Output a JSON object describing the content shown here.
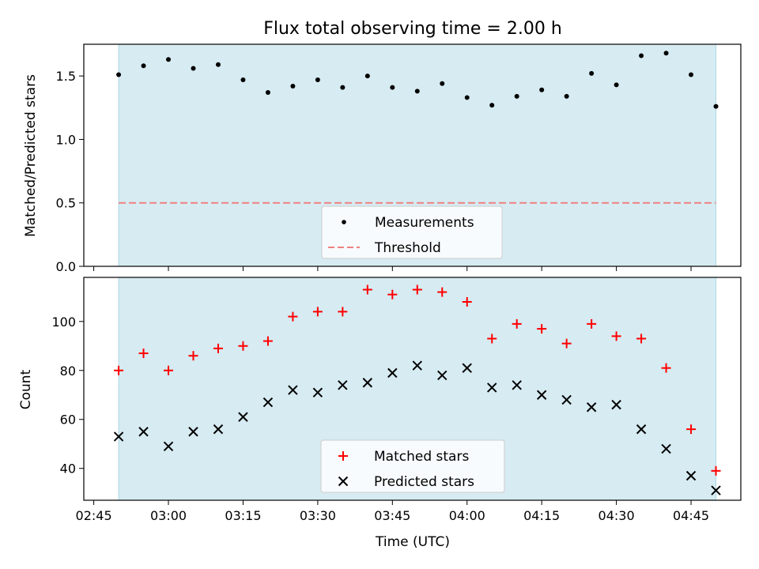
{
  "chart_data": [
    {
      "type": "scatter",
      "title": "Flux total observing time = 2.00 h",
      "ylabel": "Matched/Predicted stars",
      "xlabel": "",
      "ylim": [
        0,
        1.75
      ],
      "yticks": [
        "0.0",
        "0.5",
        "1.0",
        "1.5"
      ],
      "shaded_span": [
        "02:50",
        "04:50"
      ],
      "shade_color": "#add8e6",
      "legend_position": "lower center",
      "x": [
        "02:50",
        "02:55",
        "03:00",
        "03:05",
        "03:10",
        "03:15",
        "03:20",
        "03:25",
        "03:30",
        "03:35",
        "03:40",
        "03:45",
        "03:50",
        "03:55",
        "04:00",
        "04:05",
        "04:10",
        "04:15",
        "04:20",
        "04:25",
        "04:30",
        "04:35",
        "04:40",
        "04:45",
        "04:50"
      ],
      "series": [
        {
          "name": "Measurements",
          "marker": "dot",
          "color": "#000000",
          "values": [
            1.51,
            1.58,
            1.63,
            1.56,
            1.59,
            1.47,
            1.37,
            1.42,
            1.47,
            1.41,
            1.5,
            1.41,
            1.38,
            1.44,
            1.33,
            1.27,
            1.34,
            1.39,
            1.34,
            1.52,
            1.43,
            1.66,
            1.68,
            1.51,
            1.26
          ]
        },
        {
          "name": "Threshold",
          "marker": "dashed-line",
          "color": "#f08080",
          "values": [
            0.5
          ]
        }
      ]
    },
    {
      "type": "scatter",
      "title": "",
      "ylabel": "Count",
      "xlabel": "Time (UTC)",
      "ylim": [
        27,
        118
      ],
      "yticks": [
        "40",
        "60",
        "80",
        "100"
      ],
      "xticks": [
        "02:45",
        "03:00",
        "03:15",
        "03:30",
        "03:45",
        "04:00",
        "04:15",
        "04:30",
        "04:45"
      ],
      "shaded_span": [
        "02:50",
        "04:50"
      ],
      "shade_color": "#add8e6",
      "legend_position": "lower center",
      "x": [
        "02:50",
        "02:55",
        "03:00",
        "03:05",
        "03:10",
        "03:15",
        "03:20",
        "03:25",
        "03:30",
        "03:35",
        "03:40",
        "03:45",
        "03:50",
        "03:55",
        "04:00",
        "04:05",
        "04:10",
        "04:15",
        "04:20",
        "04:25",
        "04:30",
        "04:35",
        "04:40",
        "04:45",
        "04:50"
      ],
      "series": [
        {
          "name": "Matched stars",
          "marker": "plus",
          "color": "#ff0000",
          "values": [
            80,
            87,
            80,
            86,
            89,
            90,
            92,
            102,
            104,
            104,
            113,
            111,
            113,
            112,
            108,
            93,
            99,
            97,
            91,
            99,
            94,
            93,
            81,
            56,
            39
          ]
        },
        {
          "name": "Predicted stars",
          "marker": "x",
          "color": "#000000",
          "values": [
            53,
            55,
            49,
            55,
            56,
            61,
            67,
            72,
            71,
            74,
            75,
            79,
            82,
            78,
            81,
            73,
            74,
            70,
            68,
            65,
            66,
            56,
            48,
            37,
            31
          ]
        }
      ]
    }
  ]
}
